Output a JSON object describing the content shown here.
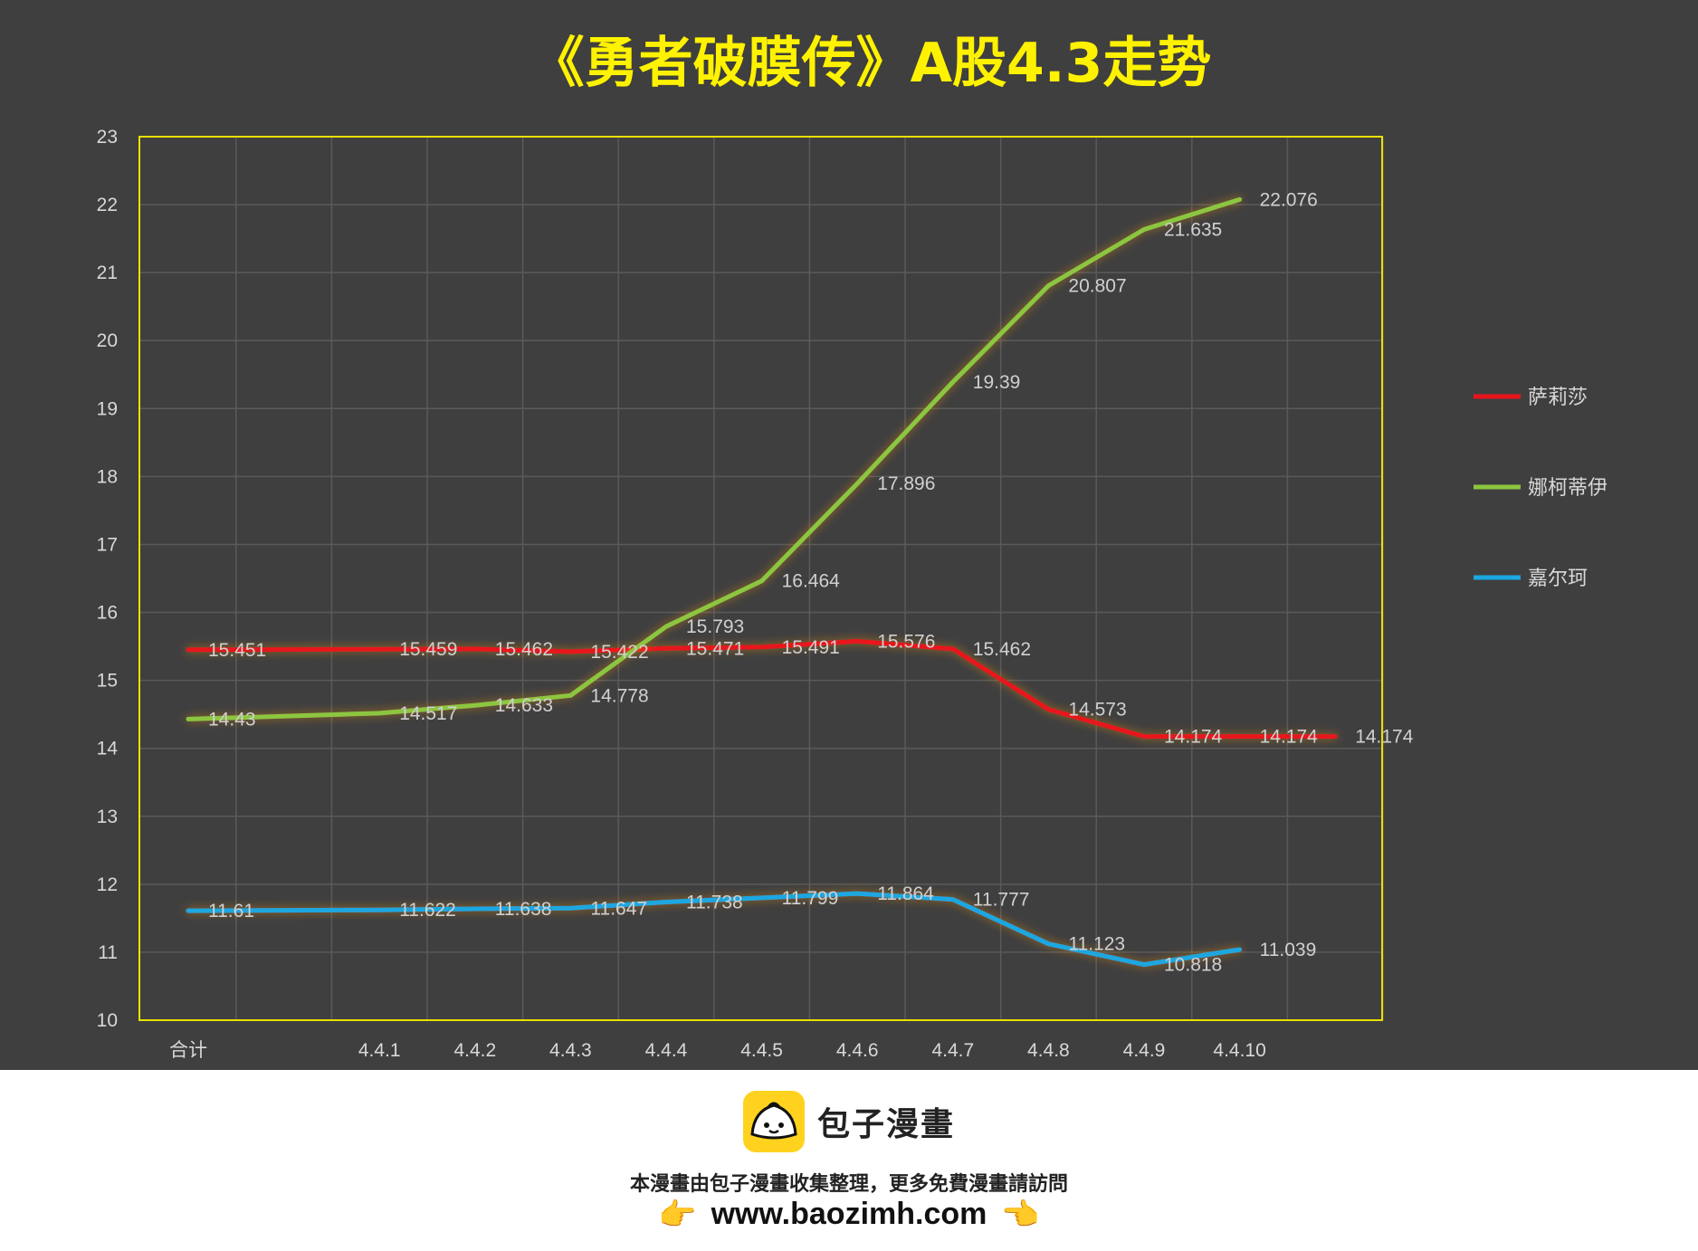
{
  "chart_data": {
    "type": "line",
    "title": "《勇者破膜传》A股4.3走势",
    "categories": [
      "合计",
      "",
      "4.4.1",
      "4.4.2",
      "4.4.3",
      "4.4.4",
      "4.4.5",
      "4.4.6",
      "4.4.7",
      "4.4.8",
      "4.4.9",
      "4.4.10",
      ""
    ],
    "ylim": [
      10,
      23
    ],
    "yticks": [
      10,
      11,
      12,
      13,
      14,
      15,
      16,
      17,
      18,
      19,
      20,
      21,
      22,
      23
    ],
    "grid": true,
    "legend_position": "right",
    "series": [
      {
        "name": "萨莉莎",
        "color": "#e8141c",
        "values": [
          15.451,
          null,
          15.459,
          15.462,
          15.422,
          15.471,
          15.491,
          15.576,
          15.462,
          14.573,
          14.174,
          14.174,
          14.174
        ],
        "labels": [
          "15.451",
          null,
          "15.459",
          "15.462",
          "15.422",
          "15.471",
          "15.491",
          "15.576",
          "15.462",
          "14.573",
          "14.174",
          "14.174",
          "14.174"
        ]
      },
      {
        "name": "娜柯蒂伊",
        "color": "#8cc63f",
        "values": [
          14.43,
          null,
          14.517,
          14.633,
          14.778,
          15.793,
          16.464,
          17.896,
          19.39,
          20.807,
          21.635,
          22.076,
          null
        ],
        "labels": [
          "14.43",
          null,
          "14.517",
          "14.633",
          "14.778",
          "15.793",
          "16.464",
          "17.896",
          "19.39",
          "20.807",
          "21.635",
          "22.076",
          null
        ]
      },
      {
        "name": "嘉尔珂",
        "color": "#1ba7e0",
        "values": [
          11.61,
          null,
          11.622,
          11.638,
          11.647,
          11.738,
          11.799,
          11.864,
          11.777,
          11.123,
          10.818,
          11.039,
          null
        ],
        "labels": [
          "11.61",
          null,
          "11.622",
          "11.638",
          "11.647",
          "11.738",
          "11.799",
          "11.864",
          "11.777",
          "11.123",
          "10.818",
          "11.039",
          null
        ]
      }
    ]
  },
  "colors": {
    "background": "#3f3f3f",
    "title": "#fff200",
    "plot_border": "#e8e000",
    "grid": "#5a5a5a"
  },
  "footer": {
    "brand_name": "包子漫畫",
    "notice": "本漫畫由包子漫畫收集整理，更多免費漫畫請訪問",
    "url": "www.baozimh.com",
    "hand_left": "👉",
    "hand_right": "👈",
    "logo_icon": "baozi-bun-icon"
  }
}
